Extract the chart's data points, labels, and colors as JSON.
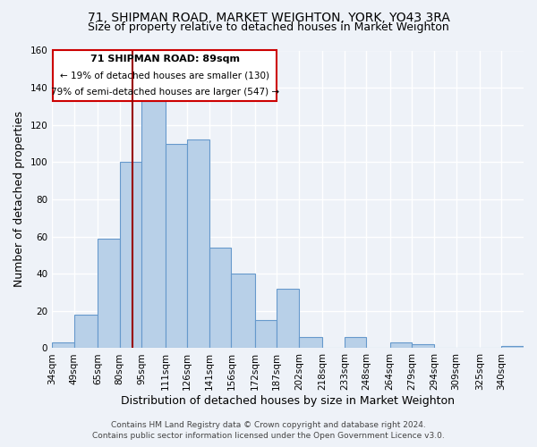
{
  "title": "71, SHIPMAN ROAD, MARKET WEIGHTON, YORK, YO43 3RA",
  "subtitle": "Size of property relative to detached houses in Market Weighton",
  "xlabel": "Distribution of detached houses by size in Market Weighton",
  "ylabel": "Number of detached properties",
  "bar_labels": [
    "34sqm",
    "49sqm",
    "65sqm",
    "80sqm",
    "95sqm",
    "111sqm",
    "126sqm",
    "141sqm",
    "156sqm",
    "172sqm",
    "187sqm",
    "202sqm",
    "218sqm",
    "233sqm",
    "248sqm",
    "264sqm",
    "279sqm",
    "294sqm",
    "309sqm",
    "325sqm",
    "340sqm"
  ],
  "bar_edges": [
    34,
    49,
    65,
    80,
    95,
    111,
    126,
    141,
    156,
    172,
    187,
    202,
    218,
    233,
    248,
    264,
    279,
    294,
    309,
    325,
    340,
    355
  ],
  "bar_heights": [
    3,
    18,
    59,
    100,
    133,
    110,
    112,
    54,
    40,
    15,
    32,
    6,
    0,
    6,
    0,
    3,
    2,
    0,
    0,
    0,
    1
  ],
  "bar_color": "#b8d0e8",
  "bar_edge_color": "#6699cc",
  "ylim": [
    0,
    160
  ],
  "yticks": [
    0,
    20,
    40,
    60,
    80,
    100,
    120,
    140,
    160
  ],
  "annotation_title": "71 SHIPMAN ROAD: 89sqm",
  "annotation_line1": "← 19% of detached houses are smaller (130)",
  "annotation_line2": "79% of semi-detached houses are larger (547) →",
  "vline_x": 89,
  "footer_line1": "Contains HM Land Registry data © Crown copyright and database right 2024.",
  "footer_line2": "Contains public sector information licensed under the Open Government Licence v3.0.",
  "background_color": "#eef2f8",
  "grid_color": "#ffffff",
  "title_fontsize": 10,
  "subtitle_fontsize": 9,
  "axis_label_fontsize": 9,
  "tick_fontsize": 7.5,
  "footer_fontsize": 6.5,
  "annotation_fontsize_title": 8,
  "annotation_fontsize_body": 7.5
}
